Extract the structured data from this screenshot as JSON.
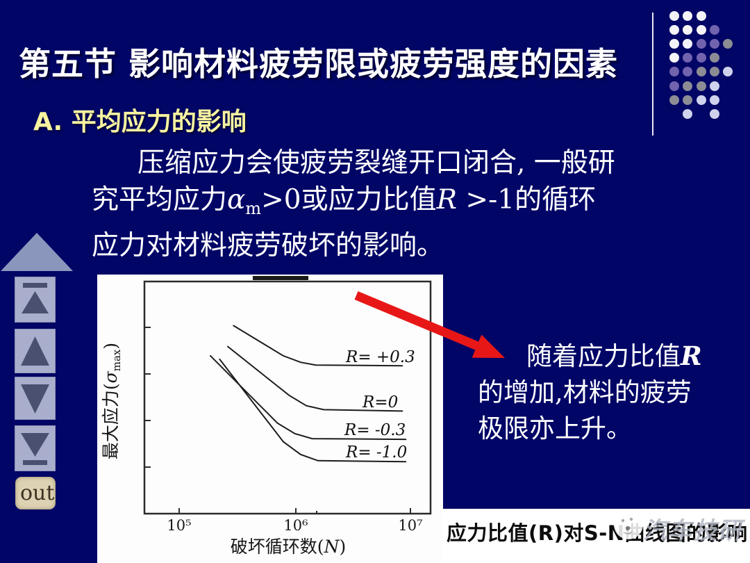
{
  "colors": {
    "background": "#000566",
    "accent_red": "#e81717",
    "title_white": "#ffffff",
    "subtitle_yellow": "#f7f3a0",
    "nav_button_bg": "#a9aecd",
    "nav_glyph": "#4a5170",
    "big_arrow": "#8b96bc",
    "out_bg": "#ddd3b4",
    "out_text": "#3f3222",
    "figure_bg": "#fdfdfd",
    "caption_text": "#0c0c0c"
  },
  "header": {
    "title": "第五节 影响材料疲劳限或疲劳强度的因素",
    "subtitle": "A. 平均应力的影响"
  },
  "body": {
    "line1": "压缩应力会使疲劳裂缝开口闭合, 一般研",
    "line2": {
      "seg1": "究平均应力",
      "alpha": "α",
      "alpha_sub": "m",
      "seg2": ">0或应力比值",
      "r_var": "R",
      "seg3": " >-1的循环"
    },
    "line3": "应力对材料疲劳破坏的影响。"
  },
  "callout": {
    "line1_pre": "随着应力比值",
    "line1_var": "R",
    "line2": "的增加,材料的疲劳",
    "line3": "极限亦上升。"
  },
  "figure": {
    "caption": "应力比值(R)对S-N曲线图的影响",
    "watermark": "汽车技研",
    "axis": {
      "x_pre": "破坏循环数(",
      "x_sym": "N",
      "x_post": ")",
      "y_pre": "最大应力(",
      "y_sym": "σ",
      "y_sub": "max",
      "y_post": ")"
    }
  },
  "nav": {
    "out_label": "out",
    "buttons": [
      {
        "id": "first-slide"
      },
      {
        "id": "previous-slide"
      },
      {
        "id": "next-slide"
      },
      {
        "id": "last-slide"
      }
    ]
  },
  "decoration": {
    "pattern": [
      "WWW..",
      "WWWP.",
      "WWPPG",
      "WPPG.",
      "PPGGL",
      "PGGL.",
      "GGLL.",
      ".L.L."
    ],
    "palette": {
      "W": "#f4f4f8",
      "P": "#7263ae",
      "G": "#8c8c94",
      "L": "#cfd2ec"
    }
  },
  "chart_data": {
    "type": "line",
    "title": "应力比值(R)对S-N曲线图的影响",
    "xlabel": "破坏循环数(N)",
    "ylabel": "最大应力(σmax)",
    "x_scale": "log",
    "x_range": [
      100000,
      10000000
    ],
    "x_ticks": [
      "10⁵",
      "10⁶",
      "10⁷"
    ],
    "y_axis": "relative maximum stress, unlabeled ticks",
    "grid": false,
    "legend_position": "inline labels right of each curve",
    "points_format": "[log10(N cycles), relative stress %]",
    "series": [
      {
        "name": "R= +0.3",
        "points": [
          [
            5.47,
            81
          ],
          [
            5.9,
            68
          ],
          [
            6.05,
            65.2
          ],
          [
            6.18,
            64
          ],
          [
            6.93,
            63.7
          ]
        ]
      },
      {
        "name": "R=0",
        "points": [
          [
            5.42,
            72
          ],
          [
            5.95,
            51
          ],
          [
            6.1,
            46.5
          ],
          [
            6.25,
            44.8
          ],
          [
            6.93,
            44.2
          ]
        ]
      },
      {
        "name": "R= -0.3",
        "points": [
          [
            5.27,
            68
          ],
          [
            5.85,
            39
          ],
          [
            6.0,
            34.5
          ],
          [
            6.15,
            32.3
          ],
          [
            6.96,
            32
          ]
        ]
      },
      {
        "name": "R= -1.0",
        "points": [
          [
            5.35,
            66.5
          ],
          [
            5.9,
            31
          ],
          [
            6.05,
            25.5
          ],
          [
            6.2,
            22.8
          ],
          [
            6.96,
            22.4
          ]
        ]
      }
    ]
  }
}
